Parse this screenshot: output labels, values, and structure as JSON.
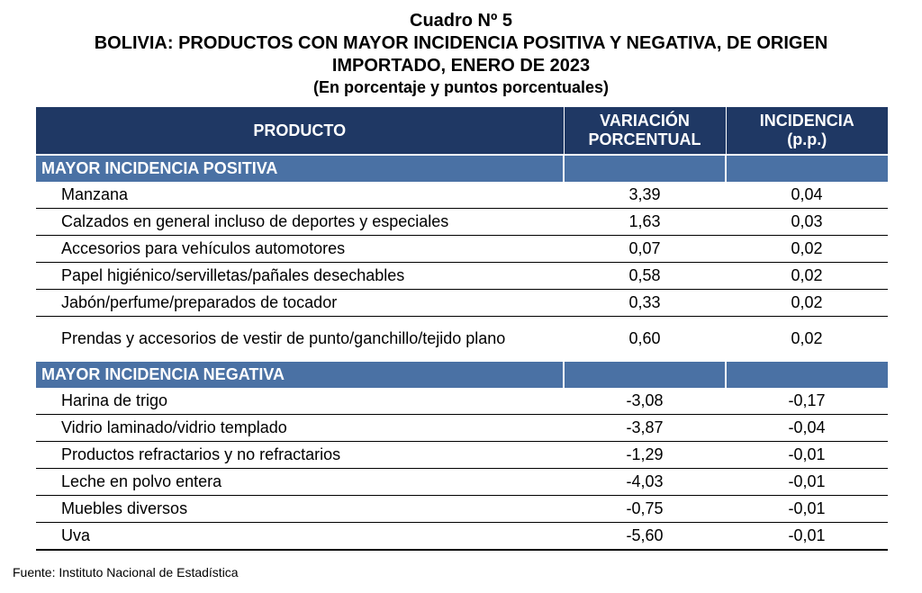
{
  "header": {
    "line1": "Cuadro Nº 5",
    "line2": "BOLIVIA: PRODUCTOS CON MAYOR INCIDENCIA POSITIVA Y NEGATIVA, DE ORIGEN",
    "line3": "IMPORTADO, ENERO DE 2023",
    "line4": "(En porcentaje y puntos porcentuales)"
  },
  "table": {
    "columns": {
      "producto": "PRODUCTO",
      "variacion_1": "VARIACIÓN",
      "variacion_2": "PORCENTUAL",
      "incidencia_1": "INCIDENCIA",
      "incidencia_2": "(p.p.)"
    },
    "positive": {
      "label": "MAYOR INCIDENCIA POSITIVA",
      "rows": [
        {
          "name": "Manzana",
          "variacion": "3,39",
          "incidencia": "0,04"
        },
        {
          "name": "Calzados en general incluso de deportes y especiales",
          "variacion": "1,63",
          "incidencia": "0,03"
        },
        {
          "name": "Accesorios para vehículos automotores",
          "variacion": "0,07",
          "incidencia": "0,02"
        },
        {
          "name": "Papel higiénico/servilletas/pañales desechables",
          "variacion": "0,58",
          "incidencia": "0,02"
        },
        {
          "name": "Jabón/perfume/preparados de tocador",
          "variacion": "0,33",
          "incidencia": "0,02"
        },
        {
          "name": "Prendas y accesorios de vestir de punto/ganchillo/tejido plano",
          "variacion": "0,60",
          "incidencia": "0,02"
        }
      ]
    },
    "negative": {
      "label": "MAYOR INCIDENCIA NEGATIVA",
      "rows": [
        {
          "name": "Harina de trigo",
          "variacion": "-3,08",
          "incidencia": "-0,17"
        },
        {
          "name": "Vidrio laminado/vidrio templado",
          "variacion": "-3,87",
          "incidencia": "-0,04"
        },
        {
          "name": "Productos refractarios y no refractarios",
          "variacion": "-1,29",
          "incidencia": "-0,01"
        },
        {
          "name": "Leche en polvo entera",
          "variacion": "-4,03",
          "incidencia": "-0,01"
        },
        {
          "name": "Muebles diversos",
          "variacion": "-0,75",
          "incidencia": "-0,01"
        },
        {
          "name": "Uva",
          "variacion": "-5,60",
          "incidencia": "-0,01"
        }
      ]
    }
  },
  "source": "Fuente: Instituto Nacional de Estadística"
}
